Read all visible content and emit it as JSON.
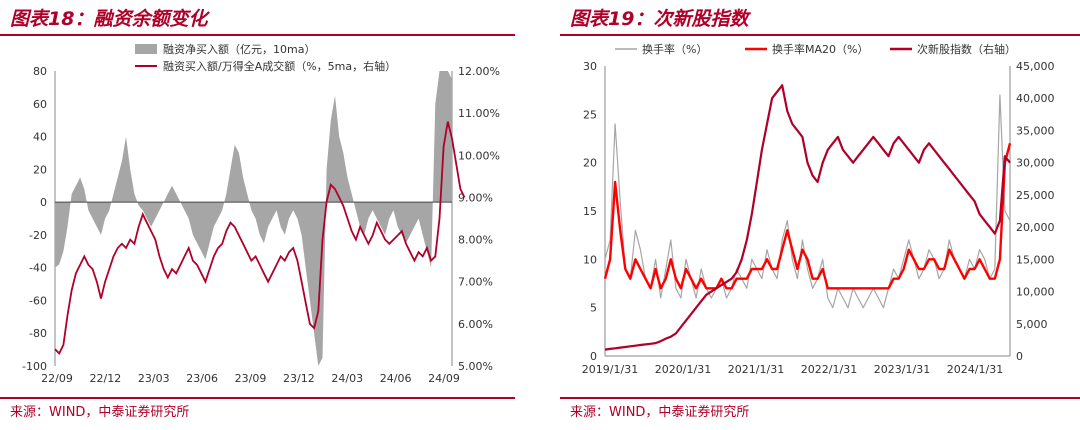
{
  "panels": {
    "left": {
      "title": "图表18：融资余额变化",
      "source": "来源：WIND，中泰证券研究所"
    },
    "right": {
      "title": "图表19：次新股指数",
      "source": "来源：WIND，中泰证券研究所"
    }
  },
  "colors": {
    "crimson": "#b0002a",
    "gray": "#a6a6a6",
    "red": "#ff0000",
    "rule": "#b0002a"
  },
  "chart_data": [
    {
      "type": "area",
      "x_ticks": [
        "22/09",
        "22/12",
        "23/03",
        "23/06",
        "23/09",
        "23/12",
        "24/03",
        "24/06",
        "24/09"
      ],
      "ylim_left": [
        -100,
        80
      ],
      "yticks_left": [
        "80",
        "60",
        "40",
        "20",
        "0",
        "-20",
        "-40",
        "-60",
        "-80",
        "-100"
      ],
      "ylim_right": [
        5.0,
        12.0
      ],
      "yticks_right": [
        "12.00%",
        "11.00%",
        "10.00%",
        "9.00%",
        "8.00%",
        "7.00%",
        "6.00%",
        "5.00%"
      ],
      "legend_placement": "top-center",
      "series": [
        {
          "name": "融资净买入额（亿元，10ma）",
          "axis": "left",
          "values": [
            -40,
            -38,
            -30,
            -15,
            5,
            10,
            15,
            8,
            -5,
            -10,
            -15,
            -20,
            -10,
            -5,
            5,
            15,
            25,
            40,
            20,
            5,
            -2,
            -5,
            -10,
            -15,
            -10,
            -5,
            0,
            5,
            10,
            5,
            0,
            -5,
            -10,
            -20,
            -25,
            -30,
            -35,
            -25,
            -15,
            -10,
            -5,
            5,
            20,
            35,
            30,
            15,
            5,
            -5,
            -10,
            -20,
            -25,
            -15,
            -10,
            -5,
            -15,
            -20,
            -10,
            -5,
            -10,
            -20,
            -40,
            -60,
            -80,
            -100,
            -95,
            20,
            50,
            65,
            40,
            30,
            15,
            5,
            -5,
            -15,
            -20,
            -10,
            -5,
            -10,
            -15,
            -20,
            -10,
            -5,
            -15,
            -20,
            -25,
            -20,
            -15,
            -10,
            -20,
            -30,
            -40,
            60,
            80,
            80,
            80,
            75
          ]
        },
        {
          "name": "融资买入额/万得全A成交额（%，5ma，右轴）",
          "axis": "right",
          "values": [
            5.4,
            5.3,
            5.5,
            6.2,
            6.8,
            7.2,
            7.4,
            7.6,
            7.4,
            7.3,
            7.0,
            6.6,
            7.0,
            7.3,
            7.6,
            7.8,
            7.9,
            7.8,
            8.0,
            7.9,
            8.3,
            8.6,
            8.4,
            8.2,
            8.0,
            7.6,
            7.3,
            7.1,
            7.3,
            7.2,
            7.4,
            7.6,
            7.8,
            7.5,
            7.4,
            7.2,
            7.0,
            7.3,
            7.6,
            7.8,
            7.9,
            8.2,
            8.4,
            8.3,
            8.1,
            7.9,
            7.7,
            7.5,
            7.6,
            7.4,
            7.2,
            7.0,
            7.2,
            7.4,
            7.6,
            7.5,
            7.7,
            7.8,
            7.5,
            7.0,
            6.5,
            6.0,
            5.9,
            6.3,
            8.0,
            8.9,
            9.3,
            9.2,
            9.0,
            8.8,
            8.5,
            8.2,
            8.0,
            8.3,
            8.1,
            7.9,
            8.1,
            8.4,
            8.2,
            8.0,
            7.9,
            8.0,
            8.1,
            8.2,
            7.9,
            7.7,
            7.5,
            7.7,
            7.6,
            7.8,
            7.5,
            7.6,
            8.5,
            10.2,
            10.8,
            10.4,
            9.8,
            9.2,
            9.0
          ]
        }
      ]
    },
    {
      "type": "line",
      "x_ticks": [
        "2019/1/31",
        "2020/1/31",
        "2021/1/31",
        "2022/1/31",
        "2023/1/31",
        "2024/1/31"
      ],
      "ylim_left": [
        0,
        30
      ],
      "yticks_left": [
        "30",
        "25",
        "20",
        "15",
        "10",
        "5",
        "0"
      ],
      "ylim_right": [
        0,
        45000
      ],
      "yticks_right": [
        "45,000",
        "40,000",
        "35,000",
        "30,000",
        "25,000",
        "20,000",
        "15,000",
        "10,000",
        "5,000",
        "0"
      ],
      "legend_placement": "top",
      "series": [
        {
          "name": "换手率（%）",
          "axis": "left",
          "values": [
            10,
            12,
            24,
            16,
            9,
            8,
            13,
            11,
            8,
            7,
            10,
            6,
            9,
            12,
            7,
            6,
            10,
            8,
            6,
            9,
            7,
            6,
            7,
            8,
            6,
            7,
            9,
            8,
            7,
            10,
            9,
            8,
            11,
            9,
            8,
            12,
            14,
            10,
            8,
            12,
            9,
            7,
            8,
            10,
            6,
            5,
            7,
            6,
            5,
            7,
            6,
            5,
            6,
            7,
            6,
            5,
            7,
            9,
            8,
            10,
            12,
            10,
            8,
            9,
            11,
            10,
            8,
            9,
            12,
            10,
            9,
            8,
            10,
            9,
            11,
            10,
            8,
            9,
            27,
            15,
            14
          ]
        },
        {
          "name": "换手率MA20（%）",
          "axis": "left",
          "values": [
            8,
            10,
            18,
            13,
            9,
            8,
            10,
            9,
            8,
            7,
            9,
            7,
            8,
            10,
            8,
            7,
            9,
            8,
            7,
            8,
            7,
            7,
            7,
            8,
            7,
            7,
            8,
            8,
            8,
            9,
            9,
            9,
            10,
            9,
            9,
            11,
            13,
            11,
            9,
            11,
            10,
            8,
            8,
            9,
            7,
            7,
            7,
            7,
            7,
            7,
            7,
            7,
            7,
            7,
            7,
            7,
            7,
            8,
            8,
            9,
            11,
            10,
            9,
            9,
            10,
            10,
            9,
            9,
            11,
            10,
            9,
            8,
            9,
            9,
            10,
            9,
            8,
            8,
            10,
            20,
            22
          ]
        },
        {
          "name": "次新股指数（右轴）",
          "axis": "right",
          "values": [
            1000,
            1100,
            1200,
            1300,
            1400,
            1500,
            1600,
            1700,
            1800,
            1900,
            2000,
            2300,
            2700,
            3000,
            3500,
            4500,
            5500,
            6500,
            7500,
            8500,
            9500,
            10000,
            10500,
            11000,
            11500,
            12000,
            13000,
            15000,
            18000,
            22000,
            27000,
            32000,
            36000,
            40000,
            41000,
            42000,
            38000,
            36000,
            35000,
            34000,
            30000,
            28000,
            27000,
            30000,
            32000,
            33000,
            34000,
            32000,
            31000,
            30000,
            31000,
            32000,
            33000,
            34000,
            33000,
            32000,
            31000,
            33000,
            34000,
            33000,
            32000,
            31000,
            30000,
            32000,
            33000,
            32000,
            31000,
            30000,
            29000,
            28000,
            27000,
            26000,
            25000,
            24000,
            22000,
            21000,
            20000,
            19000,
            21000,
            31000,
            30000
          ]
        }
      ]
    }
  ]
}
